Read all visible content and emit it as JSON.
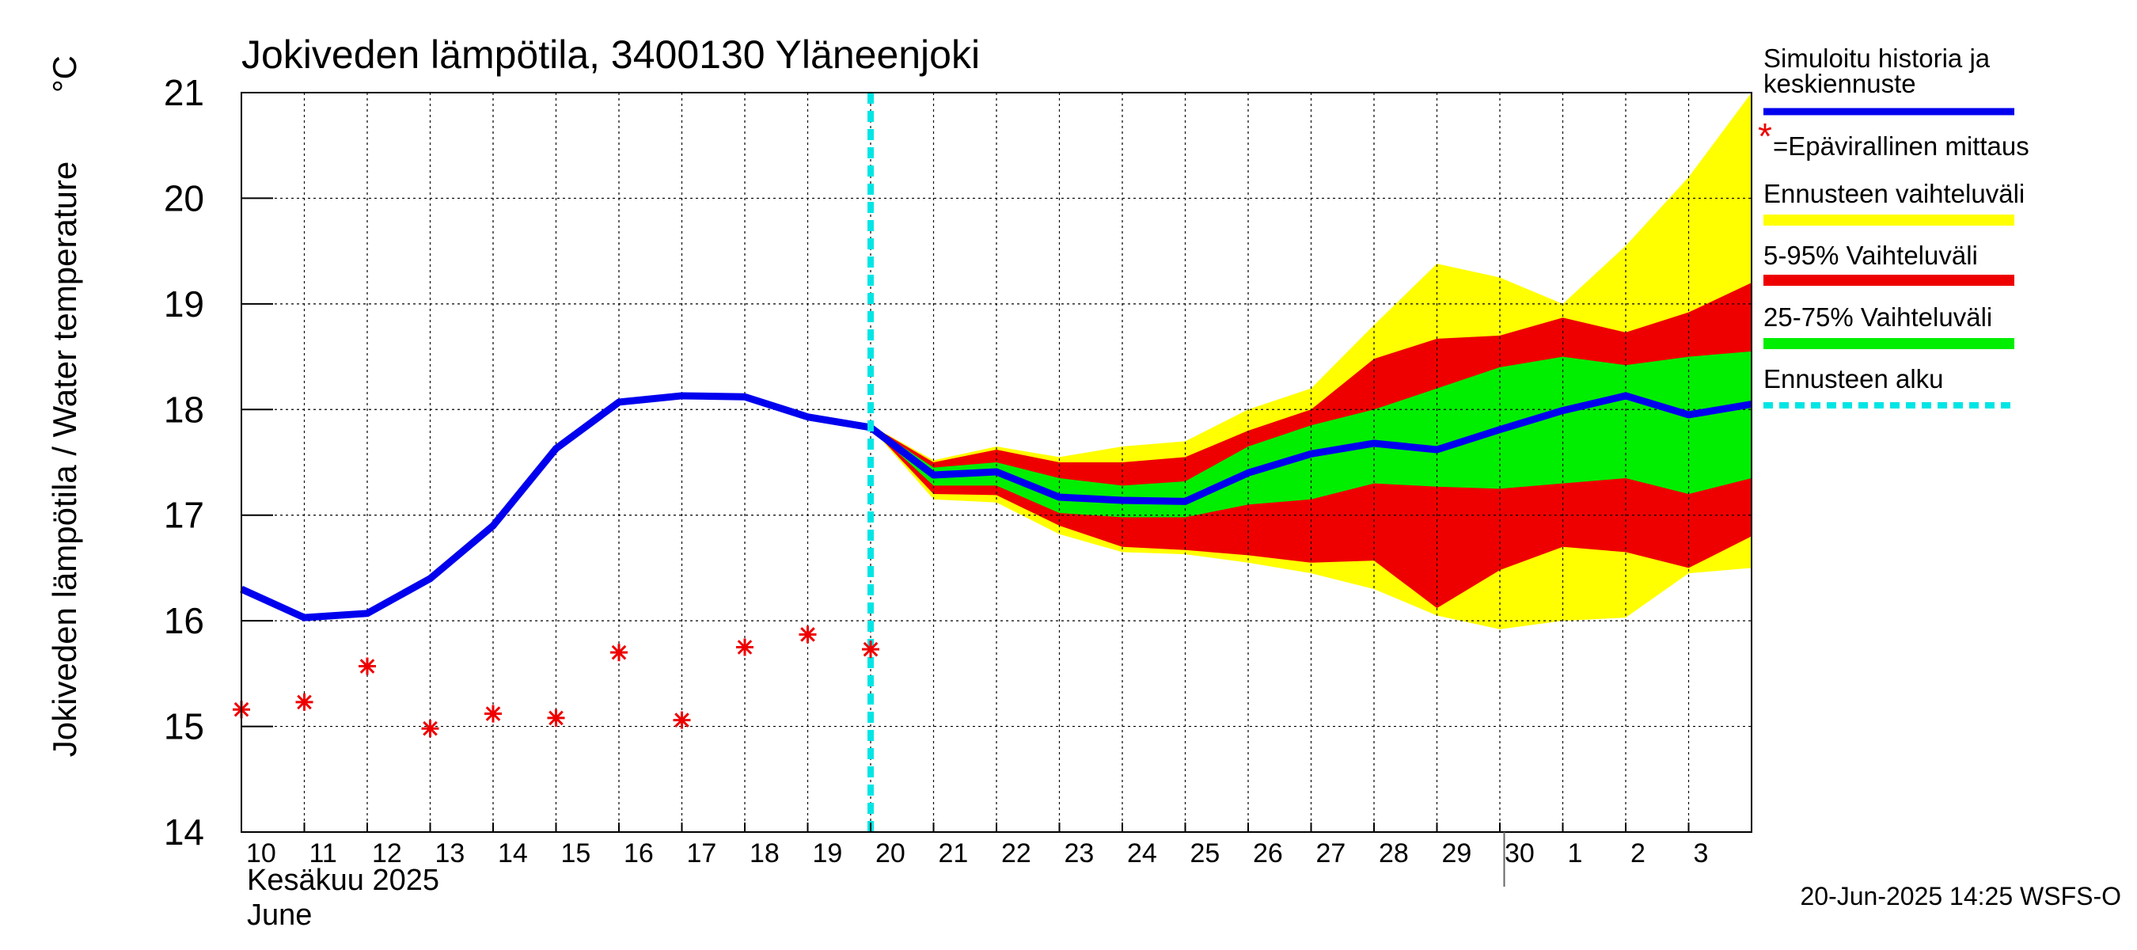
{
  "chart_data": {
    "type": "area",
    "title": "Jokiveden lämpötila, 3400130 Yläneenjoki",
    "ylabel": "Jokiveden lämpötila / Water temperature",
    "yunit": "°C",
    "ylim": [
      14,
      21
    ],
    "yticks": [
      14,
      15,
      16,
      17,
      18,
      19,
      20,
      21
    ],
    "x_tick_labels": [
      "10",
      "11",
      "12",
      "13",
      "14",
      "15",
      "16",
      "17",
      "18",
      "19",
      "20",
      "21",
      "22",
      "23",
      "24",
      "25",
      "26",
      "27",
      "28",
      "29",
      "30",
      "1",
      "2",
      "3"
    ],
    "month_label_fi": "Kesäkuu 2025",
    "month_label_en": "June",
    "forecast_start_day": 20,
    "grid": true,
    "legend_position": "right",
    "series": [
      {
        "name": "Simuloitu historia ja keskiennuste",
        "color": "#0000ee",
        "day": [
          10,
          11,
          12,
          13,
          14,
          15,
          16,
          17,
          18,
          19,
          20,
          21,
          22,
          23,
          24,
          25,
          26,
          27,
          28,
          29,
          30,
          31,
          32,
          33,
          34
        ],
        "values": [
          16.3,
          16.03,
          16.07,
          16.4,
          16.9,
          17.63,
          18.07,
          18.13,
          18.12,
          17.93,
          17.83,
          17.38,
          17.41,
          17.17,
          17.14,
          17.13,
          17.4,
          17.58,
          17.68,
          17.62,
          17.81,
          17.99,
          18.13,
          17.95,
          18.05
        ]
      },
      {
        "name": "=Epävirallinen mittaus",
        "color": "#ee0000",
        "day": [
          10,
          11,
          12,
          13,
          14,
          15,
          16,
          17,
          18,
          19,
          20
        ],
        "values": [
          15.16,
          15.23,
          15.57,
          14.98,
          15.12,
          15.08,
          15.7,
          15.06,
          15.75,
          15.87,
          15.73
        ]
      },
      {
        "name": "Ennusteen vaihteluväli",
        "color": "#ffff00",
        "day": [
          20,
          21,
          22,
          23,
          24,
          25,
          26,
          27,
          28,
          29,
          30,
          31,
          32,
          33,
          34
        ],
        "upper": [
          17.85,
          17.52,
          17.65,
          17.55,
          17.65,
          17.7,
          18.0,
          18.2,
          18.8,
          19.38,
          19.25,
          19.0,
          19.55,
          20.2,
          21.0
        ],
        "lower": [
          17.83,
          17.15,
          17.12,
          16.82,
          16.65,
          16.63,
          16.55,
          16.45,
          16.3,
          16.05,
          15.92,
          16.0,
          16.03,
          16.45,
          16.5
        ]
      },
      {
        "name": "5-95% Vaihteluväli",
        "color": "#ee0000",
        "day": [
          20,
          21,
          22,
          23,
          24,
          25,
          26,
          27,
          28,
          29,
          30,
          31,
          32,
          33,
          34
        ],
        "upper": [
          17.85,
          17.5,
          17.62,
          17.5,
          17.5,
          17.55,
          17.8,
          18.0,
          18.48,
          18.67,
          18.7,
          18.87,
          18.73,
          18.92,
          19.2
        ],
        "lower": [
          17.83,
          17.2,
          17.19,
          16.9,
          16.7,
          16.67,
          16.62,
          16.55,
          16.57,
          16.12,
          16.48,
          16.7,
          16.65,
          16.5,
          16.8
        ]
      },
      {
        "name": "25-75% Vaihteluväli",
        "color": "#00ee00",
        "day": [
          20,
          21,
          22,
          23,
          24,
          25,
          26,
          27,
          28,
          29,
          30,
          31,
          32,
          33,
          34
        ],
        "upper": [
          17.85,
          17.45,
          17.5,
          17.35,
          17.28,
          17.32,
          17.65,
          17.85,
          18.0,
          18.2,
          18.4,
          18.5,
          18.42,
          18.5,
          18.55
        ],
        "lower": [
          17.83,
          17.28,
          17.28,
          17.02,
          16.98,
          16.98,
          17.1,
          17.15,
          17.3,
          17.27,
          17.25,
          17.3,
          17.35,
          17.2,
          17.35
        ]
      },
      {
        "name": "Ennusteen alku",
        "color": "#00e5e5"
      }
    ]
  },
  "legend": {
    "simulated_line1": "Simuloitu historia ja",
    "simulated_line2": "keskiennuste",
    "measurement": "=Epävirallinen mittaus",
    "forecast_range": "Ennusteen vaihteluväli",
    "range_5_95": "5-95% Vaihteluväli",
    "range_25_75": "25-75% Vaihteluväli",
    "forecast_start": "Ennusteen alku"
  },
  "colors": {
    "median": "#0000ee",
    "measurement": "#ee0000",
    "forecast_range": "#ffff00",
    "range_5_95": "#ee0000",
    "range_25_75": "#00ee00",
    "forecast_start": "#00e5e5"
  },
  "footer": "20-Jun-2025 14:25 WSFS-O"
}
